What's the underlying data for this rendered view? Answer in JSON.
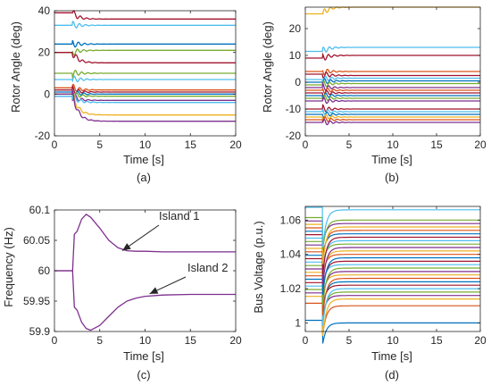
{
  "chart_data": [
    {
      "panel_label": "(a)",
      "type": "line",
      "xlabel": "Time [s]",
      "ylabel": "Rotor Angle (deg)",
      "xlim": [
        0,
        20
      ],
      "ylim": [
        -20,
        40
      ],
      "xticks": [
        "0",
        "5",
        "10",
        "15",
        "20"
      ],
      "yticks": [
        "-20",
        "0",
        "20",
        "40"
      ],
      "grid": false,
      "disturbance_time": 2,
      "series": [
        {
          "color": "#a2142f",
          "values_before": 39,
          "values_after": 36
        },
        {
          "color": "#4dbeee",
          "values_before": 33,
          "values_after": 33
        },
        {
          "color": "#0072bd",
          "values_before": 24,
          "values_after": 24
        },
        {
          "color": "#77ac30",
          "values_before": 20,
          "values_after": 21
        },
        {
          "color": "#a2142f",
          "values_before": 20,
          "values_after": 15
        },
        {
          "color": "#77ac30",
          "values_before": 10,
          "values_after": 10
        },
        {
          "color": "#4dbeee",
          "values_before": 7,
          "values_after": 7
        },
        {
          "color": "#d95319",
          "values_before": 3,
          "values_after": 2
        },
        {
          "color": "#a2142f",
          "values_before": 2,
          "values_after": 1
        },
        {
          "color": "#0072bd",
          "values_before": 1,
          "values_after": 0
        },
        {
          "color": "#77ac30",
          "values_before": 0,
          "values_after": -1
        },
        {
          "color": "#7e2f8e",
          "values_before": -1,
          "values_after": -3
        },
        {
          "color": "#4dbeee",
          "values_before": -1,
          "values_after": -4
        },
        {
          "color": "#edb120",
          "values_before": 0,
          "values_after": -10
        },
        {
          "color": "#7e2f8e",
          "values_before": 0,
          "values_after": -13
        }
      ]
    },
    {
      "panel_label": "(b)",
      "type": "line",
      "xlabel": "Time [s]",
      "ylabel": "Rotor Angle (deg)",
      "xlim": [
        0,
        20
      ],
      "ylim": [
        -20,
        28
      ],
      "xticks": [
        "0",
        "5",
        "10",
        "15",
        "20"
      ],
      "yticks": [
        "-20",
        "-10",
        "0",
        "10",
        "20"
      ],
      "grid": false,
      "disturbance_time": 2,
      "series": [
        {
          "color": "#edb120",
          "values_before": 25.5,
          "values_after": 28
        },
        {
          "color": "#4dbeee",
          "values_before": 11.5,
          "values_after": 13
        },
        {
          "color": "#a2142f",
          "values_before": 9,
          "values_after": 10
        },
        {
          "color": "#d95319",
          "values_before": 4,
          "values_after": 4
        },
        {
          "color": "#a2142f",
          "values_before": 3,
          "values_after": 2.5
        },
        {
          "color": "#4dbeee",
          "values_before": 1,
          "values_after": 1.5
        },
        {
          "color": "#0072bd",
          "values_before": 0,
          "values_after": 0.5
        },
        {
          "color": "#77ac30",
          "values_before": -1,
          "values_after": -0.5
        },
        {
          "color": "#7e2f8e",
          "values_before": -2,
          "values_after": -2
        },
        {
          "color": "#d95319",
          "values_before": -3,
          "values_after": -3
        },
        {
          "color": "#a2142f",
          "values_before": -4,
          "values_after": -4
        },
        {
          "color": "#0072bd",
          "values_before": -5,
          "values_after": -5
        },
        {
          "color": "#77ac30",
          "values_before": -6,
          "values_after": -6
        },
        {
          "color": "#7e2f8e",
          "values_before": -7,
          "values_after": -7
        },
        {
          "color": "#a2142f",
          "values_before": -10,
          "values_after": -10
        },
        {
          "color": "#4dbeee",
          "values_before": -11,
          "values_after": -11
        },
        {
          "color": "#0072bd",
          "values_before": -12,
          "values_after": -12
        },
        {
          "color": "#edb120",
          "values_before": -13,
          "values_after": -13
        },
        {
          "color": "#d95319",
          "values_before": -14,
          "values_after": -14
        },
        {
          "color": "#7e2f8e",
          "values_before": -15,
          "values_after": -15
        }
      ]
    },
    {
      "panel_label": "(c)",
      "type": "line",
      "xlabel": "Time [s]",
      "ylabel": "Frequency (Hz)",
      "xlim": [
        0,
        20
      ],
      "ylim": [
        59.9,
        60.1
      ],
      "xticks": [
        "0",
        "5",
        "10",
        "15",
        "20"
      ],
      "yticks": [
        "59.9",
        "59.95",
        "60",
        "60.05",
        "60.1"
      ],
      "grid": false,
      "annotations": [
        {
          "text": "Island 1",
          "target_x": 7.5,
          "target_y": 60.033
        },
        {
          "text": "Island 2",
          "target_x": 10.5,
          "target_y": 59.962
        }
      ],
      "series": [
        {
          "name": "Island 1",
          "color": "#7e2f8e",
          "x": [
            0,
            2,
            2.2,
            2.5,
            3,
            3.5,
            4,
            5,
            6,
            7,
            8,
            9,
            10,
            12,
            15,
            20
          ],
          "y": [
            60,
            60,
            60.06,
            60.065,
            60.085,
            60.093,
            60.088,
            60.07,
            60.05,
            60.038,
            60.033,
            60.032,
            60.032,
            60.031,
            60.031,
            60.031
          ]
        },
        {
          "name": "Island 2",
          "color": "#7e2f8e",
          "x": [
            0,
            2,
            2.2,
            2.5,
            3,
            3.5,
            4,
            5,
            6,
            7,
            8,
            9,
            10,
            12,
            15,
            20
          ],
          "y": [
            60,
            60,
            59.94,
            59.935,
            59.915,
            59.905,
            59.902,
            59.91,
            59.925,
            59.94,
            59.95,
            59.955,
            59.958,
            59.96,
            59.961,
            59.961
          ]
        }
      ]
    },
    {
      "panel_label": "(d)",
      "type": "line",
      "xlabel": "Time [s]",
      "ylabel": "Bus Voltage (p.u.)",
      "xlim": [
        0,
        20
      ],
      "ylim": [
        0.995,
        1.068
      ],
      "xticks": [
        "0",
        "5",
        "10",
        "15",
        "20"
      ],
      "yticks": [
        "1",
        "1.02",
        "1.04",
        "1.06"
      ],
      "grid": false,
      "disturbance_time": 2,
      "series_levels": [
        1.0,
        1.01,
        1.014,
        1.016,
        1.018,
        1.02,
        1.022,
        1.024,
        1.026,
        1.028,
        1.03,
        1.032,
        1.034,
        1.036,
        1.038,
        1.04,
        1.042,
        1.044,
        1.046,
        1.048,
        1.05,
        1.052,
        1.054,
        1.056,
        1.058,
        1.06,
        1.066
      ],
      "colors": [
        "#0072bd",
        "#d95319",
        "#edb120",
        "#7e2f8e",
        "#77ac30",
        "#4dbeee",
        "#a2142f"
      ]
    }
  ]
}
